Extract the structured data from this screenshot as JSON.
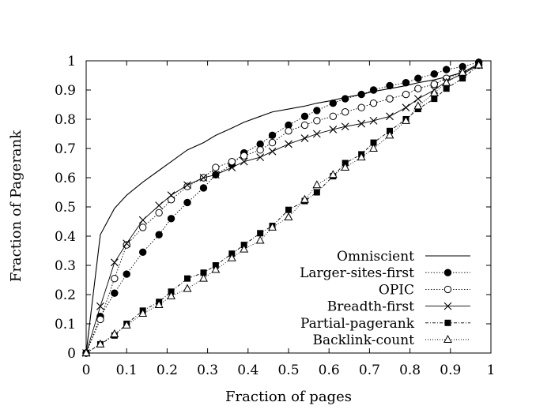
{
  "chart_data": {
    "type": "line",
    "title": "",
    "xlabel": "Fraction of pages",
    "ylabel": "Fraction of Pagerank",
    "xlim": [
      0,
      1
    ],
    "ylim": [
      0,
      1
    ],
    "xticks": [
      "0",
      "0.1",
      "0.2",
      "0.3",
      "0.4",
      "0.5",
      "0.6",
      "0.7",
      "0.8",
      "0.9",
      "1"
    ],
    "yticks": [
      "0",
      "0.1",
      "0.2",
      "0.3",
      "0.4",
      "0.5",
      "0.6",
      "0.7",
      "0.8",
      "0.9",
      "1"
    ],
    "grid": false,
    "legend_position": "bottom-right",
    "series": [
      {
        "name": "Omniscient",
        "marker": "none",
        "dash": "solid",
        "color": "#000000",
        "x": [
          0,
          0.035,
          0.07,
          0.1,
          0.14,
          0.18,
          0.21,
          0.25,
          0.29,
          0.32,
          0.36,
          0.39,
          0.43,
          0.46,
          0.5,
          0.54,
          0.57,
          0.61,
          0.64,
          0.68,
          0.71,
          0.75,
          0.79,
          0.82,
          0.86,
          0.89,
          0.93,
          0.97
        ],
        "y": [
          0,
          0.405,
          0.495,
          0.54,
          0.585,
          0.625,
          0.655,
          0.695,
          0.72,
          0.745,
          0.77,
          0.79,
          0.81,
          0.825,
          0.835,
          0.845,
          0.855,
          0.865,
          0.875,
          0.885,
          0.895,
          0.905,
          0.915,
          0.925,
          0.935,
          0.945,
          0.96,
          0.99
        ]
      },
      {
        "name": "Larger-sites-first",
        "marker": "filled-circle",
        "dash": "dot",
        "color": "#000000",
        "x": [
          0,
          0.035,
          0.07,
          0.1,
          0.14,
          0.18,
          0.21,
          0.25,
          0.29,
          0.32,
          0.36,
          0.39,
          0.43,
          0.46,
          0.5,
          0.54,
          0.57,
          0.61,
          0.64,
          0.68,
          0.71,
          0.75,
          0.79,
          0.82,
          0.86,
          0.89,
          0.93,
          0.97
        ],
        "y": [
          0,
          0.125,
          0.205,
          0.27,
          0.345,
          0.405,
          0.46,
          0.515,
          0.565,
          0.61,
          0.645,
          0.685,
          0.715,
          0.745,
          0.78,
          0.81,
          0.83,
          0.855,
          0.87,
          0.885,
          0.9,
          0.915,
          0.925,
          0.94,
          0.955,
          0.97,
          0.98,
          0.995
        ]
      },
      {
        "name": "OPIC",
        "marker": "open-circle",
        "dash": "dot",
        "color": "#000000",
        "x": [
          0,
          0.035,
          0.07,
          0.1,
          0.14,
          0.18,
          0.21,
          0.25,
          0.29,
          0.32,
          0.36,
          0.39,
          0.43,
          0.46,
          0.5,
          0.54,
          0.57,
          0.61,
          0.64,
          0.68,
          0.71,
          0.75,
          0.79,
          0.82,
          0.86,
          0.89,
          0.93,
          0.97
        ],
        "y": [
          0,
          0.115,
          0.255,
          0.37,
          0.43,
          0.48,
          0.525,
          0.57,
          0.6,
          0.635,
          0.655,
          0.675,
          0.695,
          0.72,
          0.76,
          0.78,
          0.795,
          0.81,
          0.825,
          0.84,
          0.855,
          0.87,
          0.885,
          0.905,
          0.92,
          0.94,
          0.96,
          0.985
        ]
      },
      {
        "name": "Breadth-first",
        "marker": "cross",
        "dash": "solid-thin",
        "color": "#000000",
        "x": [
          0,
          0.035,
          0.07,
          0.1,
          0.14,
          0.18,
          0.21,
          0.25,
          0.29,
          0.32,
          0.36,
          0.39,
          0.43,
          0.46,
          0.5,
          0.54,
          0.57,
          0.61,
          0.64,
          0.68,
          0.71,
          0.75,
          0.79,
          0.82,
          0.86,
          0.89,
          0.93,
          0.97
        ],
        "y": [
          0,
          0.16,
          0.31,
          0.375,
          0.455,
          0.505,
          0.54,
          0.575,
          0.6,
          0.61,
          0.635,
          0.655,
          0.67,
          0.69,
          0.715,
          0.735,
          0.75,
          0.765,
          0.775,
          0.785,
          0.795,
          0.81,
          0.84,
          0.87,
          0.9,
          0.93,
          0.955,
          0.985
        ]
      },
      {
        "name": "Partial-pagerank",
        "marker": "filled-square",
        "dash": "dash-dot",
        "color": "#000000",
        "x": [
          0,
          0.035,
          0.07,
          0.1,
          0.14,
          0.18,
          0.21,
          0.25,
          0.29,
          0.32,
          0.36,
          0.39,
          0.43,
          0.46,
          0.5,
          0.54,
          0.57,
          0.61,
          0.64,
          0.68,
          0.71,
          0.75,
          0.79,
          0.82,
          0.86,
          0.89,
          0.93,
          0.97
        ],
        "y": [
          0,
          0.03,
          0.06,
          0.1,
          0.145,
          0.175,
          0.21,
          0.255,
          0.275,
          0.3,
          0.34,
          0.37,
          0.41,
          0.435,
          0.49,
          0.52,
          0.55,
          0.605,
          0.65,
          0.68,
          0.72,
          0.76,
          0.8,
          0.835,
          0.87,
          0.905,
          0.94,
          0.985
        ]
      },
      {
        "name": "Backlink-count",
        "marker": "open-triangle",
        "dash": "dot-fine",
        "color": "#000000",
        "x": [
          0,
          0.035,
          0.07,
          0.1,
          0.14,
          0.18,
          0.21,
          0.25,
          0.29,
          0.32,
          0.36,
          0.39,
          0.43,
          0.46,
          0.5,
          0.54,
          0.57,
          0.61,
          0.64,
          0.68,
          0.71,
          0.75,
          0.79,
          0.82,
          0.86,
          0.89,
          0.93,
          0.97
        ],
        "y": [
          0,
          0.03,
          0.065,
          0.095,
          0.135,
          0.165,
          0.195,
          0.22,
          0.255,
          0.285,
          0.325,
          0.355,
          0.385,
          0.43,
          0.465,
          0.525,
          0.575,
          0.61,
          0.635,
          0.67,
          0.7,
          0.745,
          0.795,
          0.845,
          0.89,
          0.925,
          0.96,
          0.985
        ]
      }
    ]
  }
}
